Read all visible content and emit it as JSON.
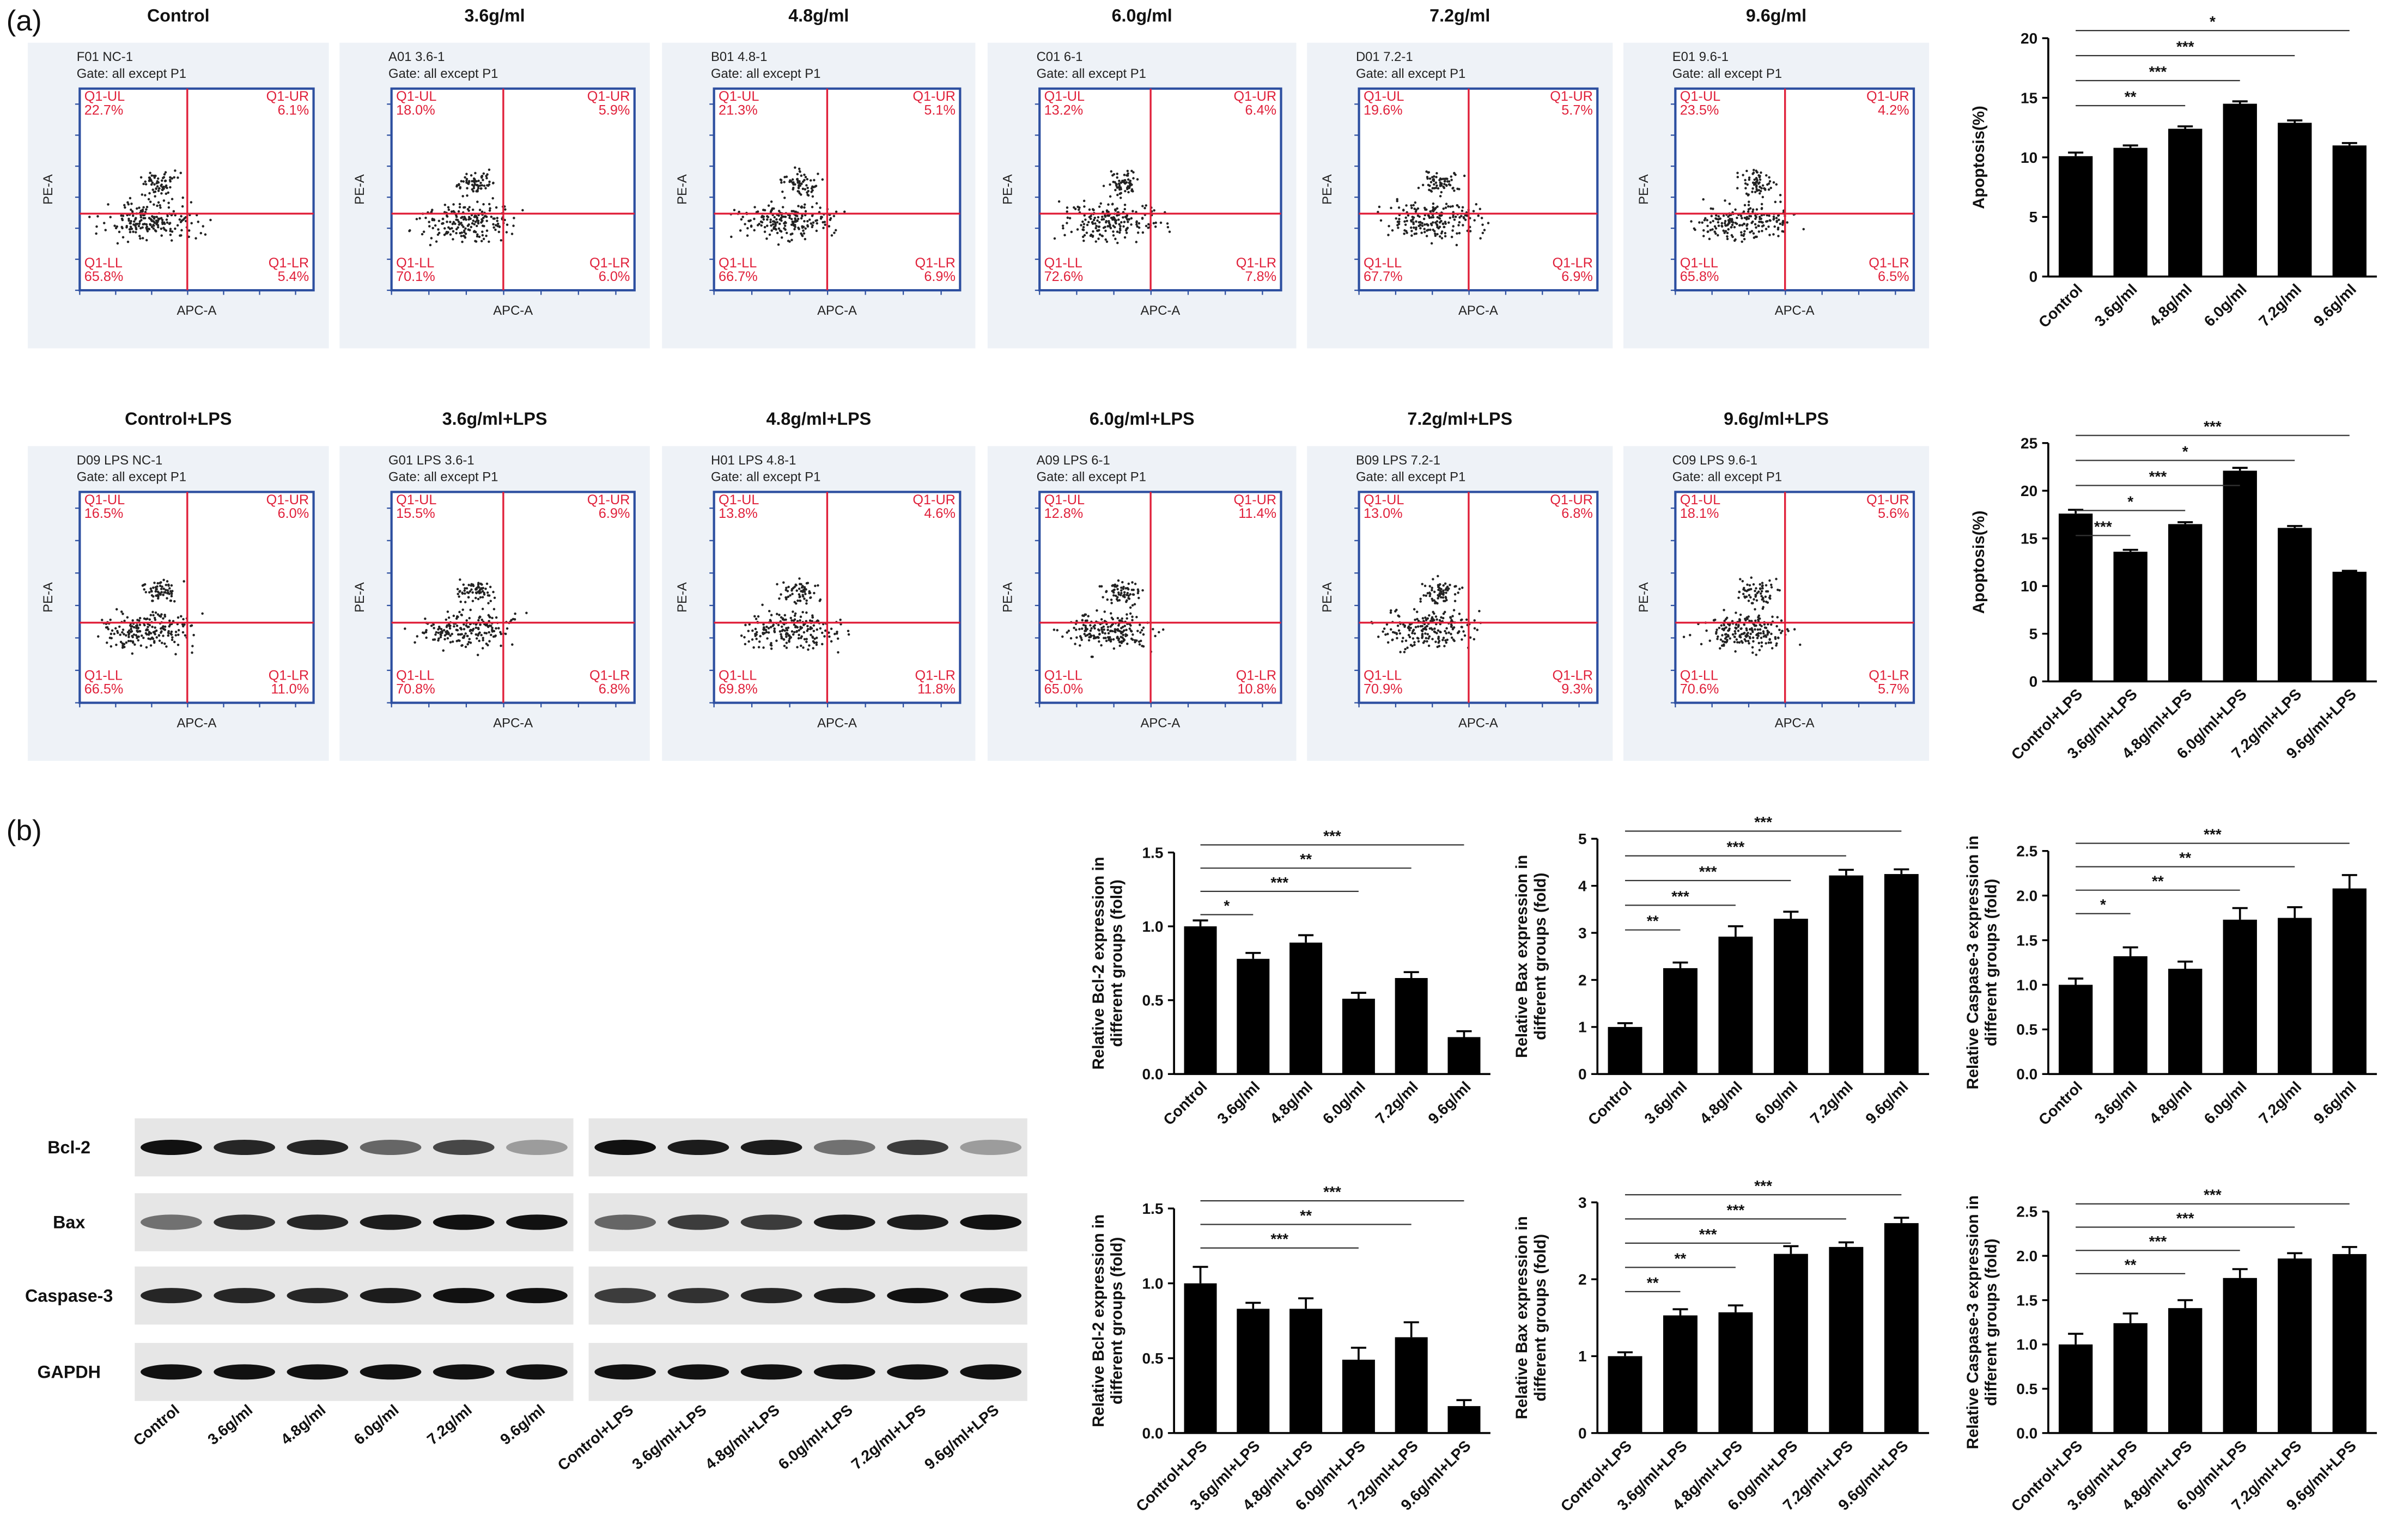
{
  "panel_labels": [
    "(a)",
    "(b)"
  ],
  "flow": {
    "x_label": "APC-A",
    "y_label": "PE-A",
    "panels": [
      {
        "header": "Control",
        "sample": "F01 NC-1",
        "gate": "Gate: all except P1",
        "quadrants": [
          {
            "name": "Q1-UL",
            "value": "22.7%"
          },
          {
            "name": "Q1-UR",
            "value": "6.1%"
          },
          {
            "name": "Q1-LL",
            "value": "65.8%"
          },
          {
            "name": "Q1-LR",
            "value": "5.4%"
          }
        ]
      },
      {
        "header": "3.6g/ml",
        "sample": "A01 3.6-1",
        "gate": "Gate: all except P1",
        "quadrants": [
          {
            "name": "Q1-UL",
            "value": "18.0%"
          },
          {
            "name": "Q1-UR",
            "value": "5.9%"
          },
          {
            "name": "Q1-LL",
            "value": "70.1%"
          },
          {
            "name": "Q1-LR",
            "value": "6.0%"
          }
        ]
      },
      {
        "header": "4.8g/ml",
        "sample": "B01 4.8-1",
        "gate": "Gate: all except P1",
        "quadrants": [
          {
            "name": "Q1-UL",
            "value": "21.3%"
          },
          {
            "name": "Q1-UR",
            "value": "5.1%"
          },
          {
            "name": "Q1-LL",
            "value": "66.7%"
          },
          {
            "name": "Q1-LR",
            "value": "6.9%"
          }
        ]
      },
      {
        "header": "6.0g/ml",
        "sample": "C01 6-1",
        "gate": "Gate: all except P1",
        "quadrants": [
          {
            "name": "Q1-UL",
            "value": "13.2%"
          },
          {
            "name": "Q1-UR",
            "value": "6.4%"
          },
          {
            "name": "Q1-LL",
            "value": "72.6%"
          },
          {
            "name": "Q1-LR",
            "value": "7.8%"
          }
        ]
      },
      {
        "header": "7.2g/ml",
        "sample": "D01 7.2-1",
        "gate": "Gate: all except P1",
        "quadrants": [
          {
            "name": "Q1-UL",
            "value": "19.6%"
          },
          {
            "name": "Q1-UR",
            "value": "5.7%"
          },
          {
            "name": "Q1-LL",
            "value": "67.7%"
          },
          {
            "name": "Q1-LR",
            "value": "6.9%"
          }
        ]
      },
      {
        "header": "9.6g/ml",
        "sample": "E01 9.6-1",
        "gate": "Gate: all except P1",
        "quadrants": [
          {
            "name": "Q1-UL",
            "value": "23.5%"
          },
          {
            "name": "Q1-UR",
            "value": "4.2%"
          },
          {
            "name": "Q1-LL",
            "value": "65.8%"
          },
          {
            "name": "Q1-LR",
            "value": "6.5%"
          }
        ]
      },
      {
        "header": "Control+LPS",
        "sample": "D09 LPS NC-1",
        "gate": "Gate: all except P1",
        "quadrants": [
          {
            "name": "Q1-UL",
            "value": "16.5%"
          },
          {
            "name": "Q1-UR",
            "value": "6.0%"
          },
          {
            "name": "Q1-LL",
            "value": "66.5%"
          },
          {
            "name": "Q1-LR",
            "value": "11.0%"
          }
        ]
      },
      {
        "header": "3.6g/ml+LPS",
        "sample": "G01 LPS 3.6-1",
        "gate": "Gate: all except P1",
        "quadrants": [
          {
            "name": "Q1-UL",
            "value": "15.5%"
          },
          {
            "name": "Q1-UR",
            "value": "6.9%"
          },
          {
            "name": "Q1-LL",
            "value": "70.8%"
          },
          {
            "name": "Q1-LR",
            "value": "6.8%"
          }
        ]
      },
      {
        "header": "4.8g/ml+LPS",
        "sample": "H01 LPS 4.8-1",
        "gate": "Gate: all except P1",
        "quadrants": [
          {
            "name": "Q1-UL",
            "value": "13.8%"
          },
          {
            "name": "Q1-UR",
            "value": "4.6%"
          },
          {
            "name": "Q1-LL",
            "value": "69.8%"
          },
          {
            "name": "Q1-LR",
            "value": "11.8%"
          }
        ]
      },
      {
        "header": "6.0g/ml+LPS",
        "sample": "A09 LPS 6-1",
        "gate": "Gate: all except P1",
        "quadrants": [
          {
            "name": "Q1-UL",
            "value": "12.8%"
          },
          {
            "name": "Q1-UR",
            "value": "11.4%"
          },
          {
            "name": "Q1-LL",
            "value": "65.0%"
          },
          {
            "name": "Q1-LR",
            "value": "10.8%"
          }
        ]
      },
      {
        "header": "7.2g/ml+LPS",
        "sample": "B09 LPS 7.2-1",
        "gate": "Gate: all except P1",
        "quadrants": [
          {
            "name": "Q1-UL",
            "value": "13.0%"
          },
          {
            "name": "Q1-UR",
            "value": "6.8%"
          },
          {
            "name": "Q1-LL",
            "value": "70.9%"
          },
          {
            "name": "Q1-LR",
            "value": "9.3%"
          }
        ]
      },
      {
        "header": "9.6g/ml+LPS",
        "sample": "C09 LPS 9.6-1",
        "gate": "Gate: all except P1",
        "quadrants": [
          {
            "name": "Q1-UL",
            "value": "18.1%"
          },
          {
            "name": "Q1-UR",
            "value": "5.6%"
          },
          {
            "name": "Q1-LL",
            "value": "70.6%"
          },
          {
            "name": "Q1-LR",
            "value": "5.7%"
          }
        ]
      }
    ]
  },
  "western_blot": {
    "rows": [
      "Bcl-2",
      "Bax",
      "Caspase-3",
      "GAPDH"
    ],
    "lanes_left": [
      "Control",
      "3.6g/ml",
      "4.8g/ml",
      "6.0g/ml",
      "7.2g/ml",
      "9.6g/ml"
    ],
    "lanes_right": [
      "Control+LPS",
      "3.6g/ml+LPS",
      "4.8g/ml+LPS",
      "6.0g/ml+LPS",
      "7.2g/ml+LPS",
      "9.6g/ml+LPS"
    ]
  },
  "chart_data": [
    {
      "type": "bar",
      "ylabel": [
        "Apoptosis(%)"
      ],
      "color": "#000000",
      "categories": [
        "Control",
        "3.6g/ml",
        "4.8g/ml",
        "6.0g/ml",
        "7.2g/ml",
        "9.6g/ml"
      ],
      "values": [
        10.1,
        10.8,
        12.4,
        14.5,
        12.9,
        11.0
      ],
      "errors": [
        0.3,
        0.2,
        0.2,
        0.2,
        0.2,
        0.2
      ],
      "ylim": [
        0,
        20
      ],
      "yticks": [
        0,
        5,
        10,
        15,
        20
      ],
      "annotations": [
        {
          "label": "*",
          "between": [
            0,
            5
          ]
        },
        {
          "label": "***",
          "between": [
            0,
            4
          ]
        },
        {
          "label": "***",
          "between": [
            0,
            3
          ]
        },
        {
          "label": "**",
          "between": [
            0,
            2
          ]
        }
      ]
    },
    {
      "type": "bar",
      "ylabel": [
        "Apoptosis(%)"
      ],
      "color": "#000000",
      "categories": [
        "Control+LPS",
        "3.6g/ml+LPS",
        "4.8g/ml+LPS",
        "6.0g/ml+LPS",
        "7.2g/ml+LPS",
        "9.6g/ml+LPS"
      ],
      "values": [
        17.6,
        13.6,
        16.5,
        22.1,
        16.1,
        11.5
      ],
      "errors": [
        0.4,
        0.2,
        0.2,
        0.3,
        0.2,
        0.1
      ],
      "ylim": [
        0,
        25
      ],
      "yticks": [
        0,
        5,
        10,
        15,
        20,
        25
      ],
      "annotations": [
        {
          "label": "***",
          "between": [
            0,
            5
          ]
        },
        {
          "label": "*",
          "between": [
            0,
            4
          ]
        },
        {
          "label": "***",
          "between": [
            0,
            3
          ]
        },
        {
          "label": "*",
          "between": [
            0,
            2
          ]
        },
        {
          "label": "***",
          "between": [
            0,
            1
          ]
        }
      ]
    },
    {
      "type": "bar",
      "ylabel": [
        "Relative Bcl-2 expression in",
        "different groups (fold)"
      ],
      "color": "#000000",
      "categories": [
        "Control",
        "3.6g/ml",
        "4.8g/ml",
        "6.0g/ml",
        "7.2g/ml",
        "9.6g/ml"
      ],
      "values": [
        1.0,
        0.78,
        0.89,
        0.51,
        0.65,
        0.25
      ],
      "errors": [
        0.04,
        0.04,
        0.05,
        0.04,
        0.04,
        0.04
      ],
      "ylim": [
        0,
        1.5
      ],
      "yticks": [
        {
          "value": 0,
          "label": "0.0"
        },
        0.5,
        {
          "value": 1,
          "label": "1.0"
        },
        1.5
      ],
      "annotations": [
        {
          "label": "***",
          "between": [
            0,
            5
          ]
        },
        {
          "label": "**",
          "between": [
            0,
            4
          ]
        },
        {
          "label": "***",
          "between": [
            0,
            3
          ]
        },
        {
          "label": "*",
          "between": [
            0,
            1
          ]
        }
      ]
    },
    {
      "type": "bar",
      "ylabel": [
        "Relative Bax expression in",
        "different groups (fold)"
      ],
      "color": "#000000",
      "categories": [
        "Control",
        "3.6g/ml",
        "4.8g/ml",
        "6.0g/ml",
        "7.2g/ml",
        "9.6g/ml"
      ],
      "values": [
        1.0,
        2.25,
        2.92,
        3.3,
        4.22,
        4.25
      ],
      "errors": [
        0.08,
        0.12,
        0.22,
        0.15,
        0.12,
        0.1
      ],
      "ylim": [
        0,
        5
      ],
      "yticks": [
        0,
        1,
        2,
        3,
        4,
        5
      ],
      "annotations": [
        {
          "label": "***",
          "between": [
            0,
            5
          ]
        },
        {
          "label": "***",
          "between": [
            0,
            4
          ]
        },
        {
          "label": "***",
          "between": [
            0,
            3
          ]
        },
        {
          "label": "***",
          "between": [
            0,
            2
          ]
        },
        {
          "label": "**",
          "between": [
            0,
            1
          ]
        }
      ]
    },
    {
      "type": "bar",
      "ylabel": [
        "Relative Caspase-3 expression in",
        "different groups (fold)"
      ],
      "color": "#000000",
      "categories": [
        "Control",
        "3.6g/ml",
        "4.8g/ml",
        "6.0g/ml",
        "7.2g/ml",
        "9.6g/ml"
      ],
      "values": [
        1.0,
        1.32,
        1.18,
        1.73,
        1.75,
        2.08
      ],
      "errors": [
        0.07,
        0.1,
        0.08,
        0.13,
        0.12,
        0.15
      ],
      "ylim": [
        0,
        2.5
      ],
      "yticks": [
        {
          "value": 0,
          "label": "0.0"
        },
        0.5,
        {
          "value": 1,
          "label": "1.0"
        },
        1.5,
        {
          "value": 2,
          "label": "2.0"
        },
        2.5
      ],
      "annotations": [
        {
          "label": "***",
          "between": [
            0,
            5
          ]
        },
        {
          "label": "**",
          "between": [
            0,
            4
          ]
        },
        {
          "label": "**",
          "between": [
            0,
            3
          ]
        },
        {
          "label": "*",
          "between": [
            0,
            1
          ]
        }
      ]
    },
    {
      "type": "bar",
      "ylabel": [
        "Relative Bcl-2 expression in",
        "different groups (fold)"
      ],
      "color": "#000000",
      "categories": [
        "Control+LPS",
        "3.6g/ml+LPS",
        "4.8g/ml+LPS",
        "6.0g/ml+LPS",
        "7.2g/ml+LPS",
        "9.6g/ml+LPS"
      ],
      "values": [
        1.0,
        0.83,
        0.83,
        0.49,
        0.64,
        0.18
      ],
      "errors": [
        0.11,
        0.04,
        0.07,
        0.08,
        0.1,
        0.04
      ],
      "ylim": [
        0,
        1.5
      ],
      "yticks": [
        {
          "value": 0,
          "label": "0.0"
        },
        0.5,
        {
          "value": 1,
          "label": "1.0"
        },
        1.5
      ],
      "annotations": [
        {
          "label": "***",
          "between": [
            0,
            5
          ]
        },
        {
          "label": "**",
          "between": [
            0,
            4
          ]
        },
        {
          "label": "***",
          "between": [
            0,
            3
          ]
        }
      ]
    },
    {
      "type": "bar",
      "ylabel": [
        "Relative Bax expression in",
        "different groups (fold)"
      ],
      "color": "#000000",
      "categories": [
        "Control+LPS",
        "3.6g/ml+LPS",
        "4.8g/ml+LPS",
        "6.0g/ml+LPS",
        "7.2g/ml+LPS",
        "9.6g/ml+LPS"
      ],
      "values": [
        1.0,
        1.53,
        1.57,
        2.33,
        2.42,
        2.73
      ],
      "errors": [
        0.05,
        0.08,
        0.09,
        0.1,
        0.06,
        0.07
      ],
      "ylim": [
        0,
        3
      ],
      "yticks": [
        0,
        1,
        2,
        3
      ],
      "annotations": [
        {
          "label": "***",
          "between": [
            0,
            5
          ]
        },
        {
          "label": "***",
          "between": [
            0,
            4
          ]
        },
        {
          "label": "***",
          "between": [
            0,
            3
          ]
        },
        {
          "label": "**",
          "between": [
            0,
            2
          ]
        },
        {
          "label": "**",
          "between": [
            0,
            1
          ]
        }
      ]
    },
    {
      "type": "bar",
      "ylabel": [
        "Relative Caspase-3 expression in",
        "different groups (fold)"
      ],
      "color": "#000000",
      "categories": [
        "Control+LPS",
        "3.6g/ml+LPS",
        "4.8g/ml+LPS",
        "6.0g/ml+LPS",
        "7.2g/ml+LPS",
        "9.6g/ml+LPS"
      ],
      "values": [
        1.0,
        1.24,
        1.41,
        1.75,
        1.97,
        2.02
      ],
      "errors": [
        0.12,
        0.11,
        0.09,
        0.1,
        0.06,
        0.08
      ],
      "ylim": [
        0,
        2.5
      ],
      "yticks": [
        {
          "value": 0,
          "label": "0.0"
        },
        0.5,
        {
          "value": 1,
          "label": "1.0"
        },
        1.5,
        {
          "value": 2,
          "label": "2.0"
        },
        2.5
      ],
      "annotations": [
        {
          "label": "***",
          "between": [
            0,
            5
          ]
        },
        {
          "label": "***",
          "between": [
            0,
            4
          ]
        },
        {
          "label": "***",
          "between": [
            0,
            3
          ]
        },
        {
          "label": "**",
          "between": [
            0,
            2
          ]
        }
      ]
    }
  ]
}
